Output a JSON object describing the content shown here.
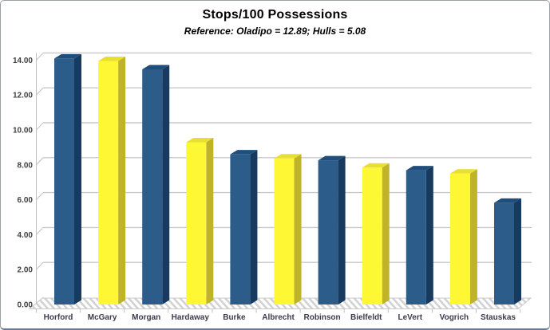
{
  "title": "Stops/100 Possessions",
  "subtitle": "Reference: Oladipo = 12.89; Hulls = 5.08",
  "chart_data": {
    "type": "bar",
    "style": "3d-column",
    "title": "Stops/100 Possessions",
    "subtitle": "Reference: Oladipo = 12.89; Hulls = 5.08",
    "categories": [
      "Horford",
      "McGary",
      "Morgan",
      "Hardaway",
      "Burke",
      "Albrecht",
      "Robinson",
      "Bielfeldt",
      "LeVert",
      "Vogrich",
      "Stauskas"
    ],
    "values": [
      14.09,
      13.95,
      13.47,
      9.29,
      8.6,
      8.37,
      8.26,
      7.84,
      7.69,
      7.5,
      5.83
    ],
    "reference_values": {
      "Oladipo": 12.89,
      "Hulls": 5.08
    },
    "xlabel": "",
    "ylabel": "",
    "ylim": [
      0,
      14
    ],
    "ytick_step": 2,
    "ytick_labels": [
      "0.00",
      "2.00",
      "4.00",
      "6.00",
      "8.00",
      "10.00",
      "12.00",
      "14.00"
    ],
    "grid": true,
    "legend": "none",
    "bar_color_pattern": [
      "blue",
      "yellow"
    ],
    "colors": {
      "blue": {
        "front": "#2B5C8A",
        "side": "#173A5E",
        "top": "#204E7B"
      },
      "yellow": {
        "front": "#FEF733",
        "side": "#BFB32A",
        "top": "#E8DF33"
      }
    },
    "gridline_color": "#C9C9C9",
    "axis_line_color": "#C0C0C0",
    "tick_label_color": "#3F3F3F",
    "category_label_color": "#3B3B4E"
  }
}
